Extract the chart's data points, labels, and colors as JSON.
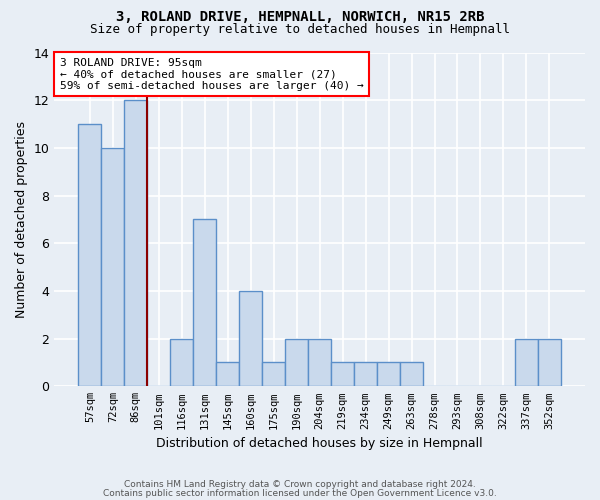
{
  "title1": "3, ROLAND DRIVE, HEMPNALL, NORWICH, NR15 2RB",
  "title2": "Size of property relative to detached houses in Hempnall",
  "xlabel": "Distribution of detached houses by size in Hempnall",
  "ylabel": "Number of detached properties",
  "categories": [
    "57sqm",
    "72sqm",
    "86sqm",
    "101sqm",
    "116sqm",
    "131sqm",
    "145sqm",
    "160sqm",
    "175sqm",
    "190sqm",
    "204sqm",
    "219sqm",
    "234sqm",
    "249sqm",
    "263sqm",
    "278sqm",
    "293sqm",
    "308sqm",
    "322sqm",
    "337sqm",
    "352sqm"
  ],
  "values": [
    11,
    10,
    12,
    0,
    2,
    7,
    1,
    4,
    1,
    2,
    2,
    1,
    1,
    1,
    1,
    0,
    0,
    0,
    0,
    2,
    2
  ],
  "bar_color": "#c9d9ec",
  "bar_edge_color": "#5b8fc9",
  "bar_edge_width": 1.0,
  "red_line_x": 2.5,
  "annotation_title": "3 ROLAND DRIVE: 95sqm",
  "annotation_line1": "← 40% of detached houses are smaller (27)",
  "annotation_line2": "59% of semi-detached houses are larger (40) →",
  "annotation_box_color": "white",
  "annotation_box_edge_color": "red",
  "ylim": [
    0,
    14
  ],
  "yticks": [
    0,
    2,
    4,
    6,
    8,
    10,
    12,
    14
  ],
  "footnote1": "Contains HM Land Registry data © Crown copyright and database right 2024.",
  "footnote2": "Contains public sector information licensed under the Open Government Licence v3.0.",
  "background_color": "#e8eef5",
  "plot_bg_color": "#e8eef5",
  "grid_color": "white"
}
